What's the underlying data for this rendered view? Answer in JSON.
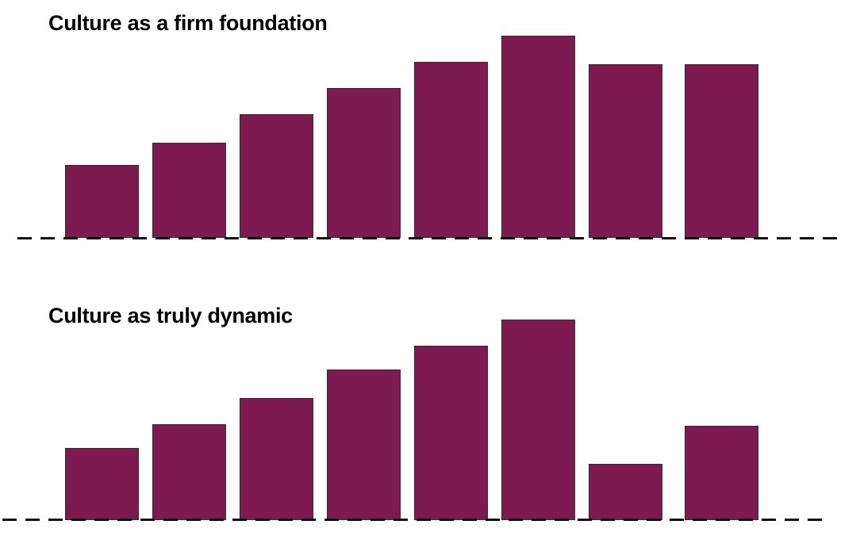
{
  "figure": {
    "background": "#FFFFFF"
  },
  "chart_data": [
    {
      "type": "bar",
      "title": "Culture as a firm foundation",
      "values": [
        36,
        47,
        61,
        74,
        87,
        100,
        86,
        86
      ],
      "ylim": [
        0,
        100
      ],
      "xlabel": "",
      "ylabel": "",
      "grid": false,
      "legend_position": "none",
      "axis_tick_labels": false,
      "bar_color": "#7D1A50",
      "bar_border_color": "#2E2E2E",
      "baseline": {
        "style": "dashed",
        "color": "#111111"
      },
      "title_color": "#000000"
    },
    {
      "type": "bar",
      "title": "Culture as truly dynamic",
      "values": [
        36,
        48,
        61,
        75,
        87,
        100,
        28,
        47
      ],
      "ylim": [
        0,
        100
      ],
      "xlabel": "",
      "ylabel": "",
      "grid": false,
      "legend_position": "none",
      "axis_tick_labels": false,
      "bar_color": "#7D1A50",
      "bar_border_color": "#2E2E2E",
      "baseline": {
        "style": "dashed",
        "color": "#111111"
      },
      "title_color": "#000000"
    }
  ]
}
